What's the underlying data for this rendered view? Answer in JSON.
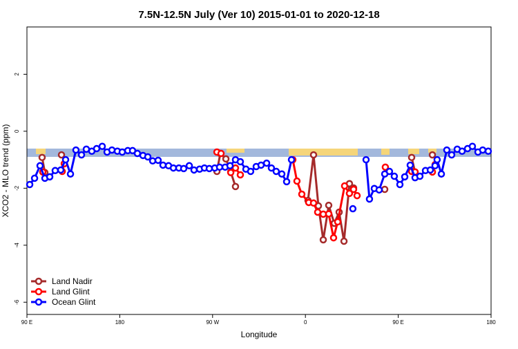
{
  "chart_data": {
    "type": "line",
    "title": "7.5N-12.5N July (Ver 10)   2015-01-01 to 2020-12-18",
    "x_label": "Longitude",
    "y_label": "XCO2 - MLO trend (ppm)",
    "xlim": [
      90,
      540
    ],
    "ylim": [
      -6.43,
      3.66
    ],
    "xticks": [
      {
        "value": 90,
        "label": "90 E"
      },
      180,
      {
        "value": 270,
        "label": "90 W"
      },
      {
        "value": 360,
        "label": "0"
      },
      {
        "value": 450,
        "label": "90 E"
      },
      {
        "value": 540,
        "label": "180"
      }
    ],
    "yticks": [
      -6,
      -4,
      -2,
      0,
      2
    ],
    "legend": "bottom-left",
    "series": [
      {
        "name": "Land Nadir",
        "color": "#a52a2a",
        "x": [
          104.7,
          107.4,
          null,
          123.5,
          null,
          274.2,
          277.5,
          282.9,
          287.6,
          292.2,
          null,
          362.5,
          367.9,
          372.6,
          377.3,
          382.6,
          388.0,
          392.7,
          397.4,
          402.7,
          406.7,
          null,
          436.9,
          null,
          463.0,
          466.3,
          null,
          483.1
        ],
        "values": [
          -0.92,
          -1.45,
          null,
          -0.83,
          null,
          -1.41,
          -0.78,
          -0.97,
          -1.43,
          -1.94,
          null,
          -2.43,
          -0.83,
          -2.62,
          -3.81,
          -2.6,
          -3.23,
          -2.84,
          -3.86,
          -1.84,
          -1.99,
          null,
          -2.04,
          null,
          -0.92,
          -1.43,
          null,
          -0.83
        ]
      },
      {
        "name": "Land Glint",
        "color": "#ff0000",
        "x": [
          105.4,
          null,
          124.2,
          126.2,
          null,
          274.2,
          278.2,
          null,
          287.6,
          292.2,
          296.9,
          null,
          347.8,
          351.8,
          356.5,
          363.2,
          367.9,
          371.9,
          377.3,
          382.6,
          387.3,
          391.3,
          398.0,
          402.7,
          406.7,
          410.1,
          null,
          437.5,
          null,
          463.0,
          466.3,
          null,
          483.1,
          485.8
        ],
        "values": [
          -1.43,
          null,
          -1.41,
          -1.14,
          null,
          -0.73,
          -0.78,
          null,
          -1.45,
          -1.29,
          -1.53,
          null,
          -1.0,
          -1.75,
          -2.21,
          -2.5,
          -2.52,
          -2.84,
          -2.91,
          -2.9,
          -3.74,
          -3.18,
          -1.92,
          -2.18,
          -2.04,
          -2.26,
          null,
          -1.26,
          null,
          -1.41,
          -1.43,
          null,
          -1.43,
          -1.17
        ]
      },
      {
        "name": "Ocean Glint",
        "color": "#0000ff",
        "x": [
          92.7,
          97.4,
          102.7,
          107.4,
          112.1,
          117.4,
          122.8,
          127.5,
          132.2,
          137.5,
          142.9,
          147.6,
          152.9,
          157.6,
          163.0,
          167.7,
          172.4,
          177.7,
          182.4,
          187.8,
          192.4,
          197.1,
          202.5,
          207.2,
          211.9,
          217.2,
          221.9,
          227.3,
          232.0,
          237.3,
          242.0,
          247.4,
          252.0,
          257.4,
          262.1,
          266.8,
          272.1,
          276.8,
          282.2,
          286.9,
          292.2,
          296.9,
          302.3,
          306.9,
          312.3,
          317.0,
          322.4,
          327.0,
          331.7,
          337.1,
          341.8,
          346.5,
          null,
          406.0,
          null,
          418.8,
          422.1,
          426.8,
          431.5,
          436.9,
          441.5,
          446.2,
          451.6,
          456.3,
          461.6,
          466.3,
          471.0,
          476.4,
          481.1,
          485.7,
          487.7,
          491.8,
          497.1,
          501.8,
          507.2,
          511.9,
          517.2,
          521.9,
          527.3,
          531.9,
          537.3
        ],
        "values": [
          -1.87,
          -1.65,
          -1.21,
          -1.65,
          -1.6,
          -1.38,
          -1.36,
          -1.0,
          -1.5,
          -0.66,
          -0.83,
          -0.63,
          -0.7,
          -0.61,
          -0.53,
          -0.73,
          -0.66,
          -0.7,
          -0.73,
          -0.68,
          -0.68,
          -0.78,
          -0.85,
          -0.9,
          -1.04,
          -1.02,
          -1.19,
          -1.21,
          -1.29,
          -1.29,
          -1.31,
          -1.21,
          -1.36,
          -1.33,
          -1.29,
          -1.31,
          -1.29,
          -1.26,
          -1.26,
          -1.21,
          -1.0,
          -1.07,
          -1.33,
          -1.41,
          -1.24,
          -1.19,
          -1.12,
          -1.29,
          -1.41,
          -1.5,
          -1.77,
          -1.0,
          null,
          -2.72,
          null,
          -1.0,
          -2.38,
          -2.01,
          -2.06,
          -1.5,
          -1.41,
          -1.58,
          -1.87,
          -1.6,
          -1.19,
          -1.63,
          -1.58,
          -1.38,
          -1.36,
          -1.21,
          -1.0,
          -1.5,
          -0.66,
          -0.83,
          -0.63,
          -0.7,
          -0.61,
          -0.53,
          -0.73,
          -0.66,
          -0.7
        ]
      }
    ]
  }
}
